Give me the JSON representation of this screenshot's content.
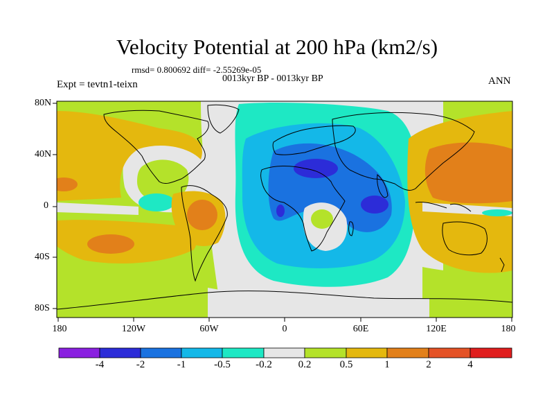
{
  "header": {
    "title": "Velocity Potential at 200 hPa (km2/s)",
    "stats": "rmsd= 0.800692 diff= -2.55269e-05",
    "period": "0013kyr BP - 0013kyr BP",
    "experiment": "Expt = tevtn1-teixn",
    "season": "ANN"
  },
  "axes": {
    "y_ticks": [
      "80N",
      "40N",
      "0",
      "40S",
      "80S"
    ],
    "x_ticks": [
      "180",
      "120W",
      "60W",
      "0",
      "60E",
      "120E",
      "180"
    ]
  },
  "colorbar": {
    "labels": [
      "-4",
      "-2",
      "-1",
      "-0.5",
      "-0.2",
      "0.2",
      "0.5",
      "1",
      "2",
      "4"
    ],
    "colors": [
      "#8a20e0",
      "#2c2cd8",
      "#1a72e0",
      "#14b8e8",
      "#1ee8c4",
      "#e6e6e6",
      "#b4e22a",
      "#e4b80e",
      "#e2801a",
      "#e45226",
      "#e01e1e"
    ]
  },
  "field_colors": {
    "neutral": "#e6e6e6",
    "low": "#b4e22a",
    "mid": "#e4b80e",
    "high": "#e2801a",
    "neg1": "#1ee8c4",
    "neg2": "#14b8e8",
    "neg3": "#1a72e0",
    "neg4": "#2c2cd8"
  }
}
